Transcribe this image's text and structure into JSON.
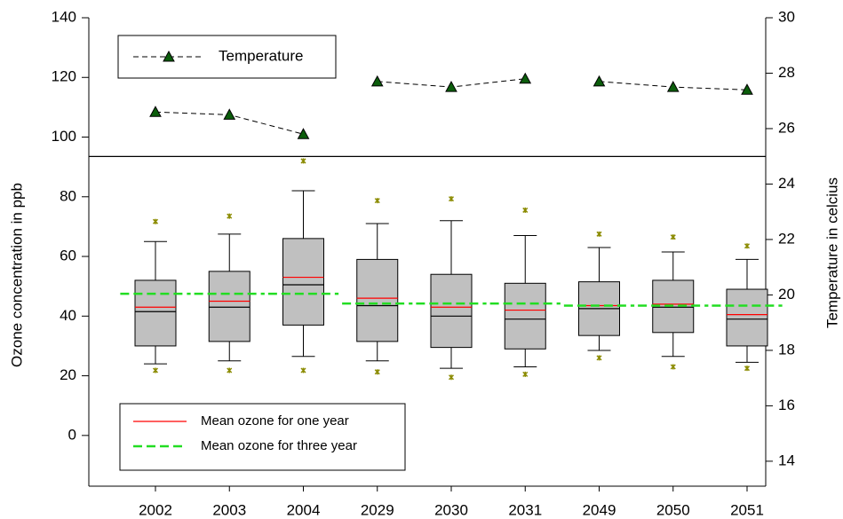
{
  "chart_data": {
    "type": "box",
    "ylabel": "Ozone concentration in ppb",
    "y2label": "Temperature in celcius",
    "categories": [
      "2002",
      "2003",
      "2004",
      "2029",
      "2030",
      "2031",
      "2049",
      "2050",
      "2051"
    ],
    "ylim": [
      -17,
      140
    ],
    "yticks": [
      0,
      20,
      40,
      60,
      80,
      100,
      120,
      140
    ],
    "y2lim": [
      13.1,
      30
    ],
    "y2ticks": [
      14,
      16,
      18,
      20,
      22,
      24,
      26,
      28,
      30
    ],
    "hline": 93.5,
    "boxes": {
      "fill": "#c0c0c0",
      "outlier_color": "#8b8b00",
      "whisker_low": [
        24,
        25,
        26.5,
        25,
        22.5,
        23,
        28.5,
        26.5,
        24.5
      ],
      "q1": [
        30,
        31.5,
        37,
        31.5,
        29.5,
        29,
        33.5,
        34.5,
        30
      ],
      "median": [
        41.5,
        43,
        50.5,
        43.5,
        40,
        39,
        42.5,
        43,
        39
      ],
      "q3": [
        52,
        55,
        66,
        59,
        54,
        51,
        51.5,
        52,
        49
      ],
      "whisker_high": [
        65,
        67.5,
        82,
        71,
        72,
        67,
        63,
        61.5,
        59
      ],
      "outlier_low": [
        21.8,
        21.8,
        21.8,
        21.3,
        19.5,
        20.5,
        26,
        23,
        22.5
      ],
      "outlier_high": [
        71.7,
        73.5,
        92,
        78.7,
        79.3,
        75.5,
        67.5,
        66.5,
        63.5
      ]
    },
    "series": [
      {
        "name": "Mean ozone for one year",
        "color": "#ff0000",
        "values": [
          43,
          45,
          53,
          46,
          43,
          42,
          43.5,
          44,
          40.5
        ]
      },
      {
        "name": "Mean ozone for three year",
        "color": "#22dd22",
        "values": [
          47.5,
          47.5,
          47.5,
          44.2,
          44.2,
          44.2,
          43.5,
          43.5,
          43.5
        ]
      },
      {
        "name": "Temperature",
        "color": "#000000",
        "marker_color": "#0b5d0b",
        "axis": "y2",
        "values": [
          26.6,
          26.5,
          25.8,
          27.7,
          27.5,
          27.8,
          27.7,
          27.5,
          27.4
        ]
      }
    ]
  }
}
